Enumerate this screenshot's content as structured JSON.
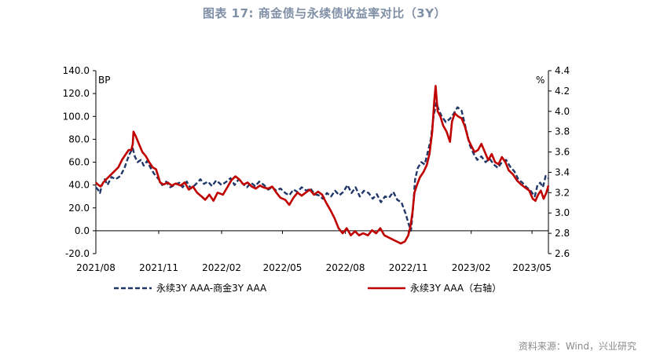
{
  "title": "图表 17: 商金债与永续债收益率对比（3Y）",
  "source": "资料来源：Wind，兴业研究",
  "colors": {
    "series1": "#1f3868",
    "series2": "#c00000",
    "title": "#7f8fa6"
  },
  "chart_data": {
    "type": "line",
    "left_axis": {
      "unit_label": "BP",
      "range": [
        -20,
        140
      ],
      "ticks": [
        "140.0",
        "120.0",
        "100.0",
        "80.0",
        "60.0",
        "40.0",
        "20.0",
        "0.0",
        "-20.0"
      ]
    },
    "right_axis": {
      "unit_label": "%",
      "range": [
        2.6,
        4.4
      ],
      "ticks": [
        "4.4",
        "4.2",
        "4.0",
        "3.8",
        "3.6",
        "3.4",
        "3.2",
        "3.0",
        "2.8",
        "2.6"
      ]
    },
    "x_ticks": [
      "2021/08",
      "2021/11",
      "2022/02",
      "2022/05",
      "2022/08",
      "2022/11",
      "2023/02",
      "2023/05"
    ],
    "x_range": [
      "2021-08-01",
      "2023-05-25"
    ],
    "grid": false,
    "legend_position": "bottom",
    "series": [
      {
        "name": "永续3Y AAA-商金3Y AAA",
        "axis": "left",
        "style": "dashed",
        "color": "#1f3868",
        "points": [
          [
            "2021-08-01",
            38
          ],
          [
            "2021-08-04",
            36
          ],
          [
            "2021-08-07",
            33
          ],
          [
            "2021-08-10",
            40
          ],
          [
            "2021-08-14",
            45
          ],
          [
            "2021-08-18",
            40
          ],
          [
            "2021-08-24",
            47
          ],
          [
            "2021-08-30",
            45
          ],
          [
            "2021-09-06",
            48
          ],
          [
            "2021-09-12",
            55
          ],
          [
            "2021-09-16",
            62
          ],
          [
            "2021-09-20",
            68
          ],
          [
            "2021-09-24",
            72
          ],
          [
            "2021-09-27",
            65
          ],
          [
            "2021-10-01",
            60
          ],
          [
            "2021-10-06",
            62
          ],
          [
            "2021-10-10",
            57
          ],
          [
            "2021-10-15",
            61
          ],
          [
            "2021-10-20",
            55
          ],
          [
            "2021-10-25",
            50
          ],
          [
            "2021-11-01",
            45
          ],
          [
            "2021-11-06",
            40
          ],
          [
            "2021-11-12",
            43
          ],
          [
            "2021-11-18",
            38
          ],
          [
            "2021-11-24",
            40
          ],
          [
            "2021-12-01",
            42
          ],
          [
            "2021-12-06",
            38
          ],
          [
            "2021-12-12",
            43
          ],
          [
            "2021-12-18",
            37
          ],
          [
            "2021-12-24",
            40
          ],
          [
            "2022-01-01",
            45
          ],
          [
            "2022-01-06",
            41
          ],
          [
            "2022-01-12",
            43
          ],
          [
            "2022-01-18",
            39
          ],
          [
            "2022-01-24",
            44
          ],
          [
            "2022-02-01",
            40
          ],
          [
            "2022-02-08",
            43
          ],
          [
            "2022-02-14",
            46
          ],
          [
            "2022-02-20",
            40
          ],
          [
            "2022-02-26",
            45
          ],
          [
            "2022-03-04",
            41
          ],
          [
            "2022-03-10",
            38
          ],
          [
            "2022-03-16",
            42
          ],
          [
            "2022-03-22",
            39
          ],
          [
            "2022-03-28",
            43
          ],
          [
            "2022-04-04",
            40
          ],
          [
            "2022-04-10",
            36
          ],
          [
            "2022-04-16",
            38
          ],
          [
            "2022-04-22",
            35
          ],
          [
            "2022-04-28",
            37
          ],
          [
            "2022-05-05",
            33
          ],
          [
            "2022-05-11",
            31
          ],
          [
            "2022-05-17",
            36
          ],
          [
            "2022-05-23",
            34
          ],
          [
            "2022-05-29",
            38
          ],
          [
            "2022-06-05",
            35
          ],
          [
            "2022-06-11",
            37
          ],
          [
            "2022-06-17",
            32
          ],
          [
            "2022-06-23",
            31
          ],
          [
            "2022-06-29",
            28
          ],
          [
            "2022-07-05",
            33
          ],
          [
            "2022-07-11",
            30
          ],
          [
            "2022-07-17",
            35
          ],
          [
            "2022-07-23",
            31
          ],
          [
            "2022-07-29",
            34
          ],
          [
            "2022-08-04",
            40
          ],
          [
            "2022-08-10",
            33
          ],
          [
            "2022-08-16",
            38
          ],
          [
            "2022-08-22",
            30
          ],
          [
            "2022-08-28",
            35
          ],
          [
            "2022-09-04",
            33
          ],
          [
            "2022-09-10",
            28
          ],
          [
            "2022-09-16",
            32
          ],
          [
            "2022-09-22",
            25
          ],
          [
            "2022-09-28",
            30
          ],
          [
            "2022-10-04",
            29
          ],
          [
            "2022-10-10",
            34
          ],
          [
            "2022-10-16",
            27
          ],
          [
            "2022-10-22",
            25
          ],
          [
            "2022-10-28",
            15
          ],
          [
            "2022-11-02",
            5
          ],
          [
            "2022-11-05",
            0
          ],
          [
            "2022-11-08",
            20
          ],
          [
            "2022-11-11",
            45
          ],
          [
            "2022-11-15",
            55
          ],
          [
            "2022-11-20",
            60
          ],
          [
            "2022-11-25",
            58
          ],
          [
            "2022-11-30",
            70
          ],
          [
            "2022-12-04",
            80
          ],
          [
            "2022-12-08",
            100
          ],
          [
            "2022-12-12",
            112
          ],
          [
            "2022-12-16",
            105
          ],
          [
            "2022-12-20",
            100
          ],
          [
            "2022-12-26",
            95
          ],
          [
            "2023-01-01",
            98
          ],
          [
            "2023-01-06",
            102
          ],
          [
            "2023-01-12",
            108
          ],
          [
            "2023-01-18",
            105
          ],
          [
            "2023-01-24",
            90
          ],
          [
            "2023-01-30",
            75
          ],
          [
            "2023-02-04",
            68
          ],
          [
            "2023-02-10",
            62
          ],
          [
            "2023-02-16",
            65
          ],
          [
            "2023-02-22",
            60
          ],
          [
            "2023-02-28",
            63
          ],
          [
            "2023-03-06",
            58
          ],
          [
            "2023-03-12",
            55
          ],
          [
            "2023-03-18",
            60
          ],
          [
            "2023-03-24",
            62
          ],
          [
            "2023-03-30",
            56
          ],
          [
            "2023-04-05",
            52
          ],
          [
            "2023-04-11",
            45
          ],
          [
            "2023-04-17",
            42
          ],
          [
            "2023-04-23",
            38
          ],
          [
            "2023-04-29",
            35
          ],
          [
            "2023-05-05",
            30
          ],
          [
            "2023-05-09",
            40
          ],
          [
            "2023-05-13",
            42
          ],
          [
            "2023-05-17",
            38
          ],
          [
            "2023-05-21",
            48
          ],
          [
            "2023-05-25",
            46
          ]
        ]
      },
      {
        "name": "永续3Y AAA（右轴）",
        "axis": "right",
        "style": "solid",
        "color": "#c00000",
        "points": [
          [
            "2021-08-01",
            3.3
          ],
          [
            "2021-08-04",
            3.28
          ],
          [
            "2021-08-08",
            3.26
          ],
          [
            "2021-08-12",
            3.3
          ],
          [
            "2021-08-16",
            3.33
          ],
          [
            "2021-08-22",
            3.37
          ],
          [
            "2021-08-28",
            3.41
          ],
          [
            "2021-09-03",
            3.45
          ],
          [
            "2021-09-08",
            3.52
          ],
          [
            "2021-09-13",
            3.57
          ],
          [
            "2021-09-18",
            3.62
          ],
          [
            "2021-09-22",
            3.62
          ],
          [
            "2021-09-24",
            3.68
          ],
          [
            "2021-09-25",
            3.8
          ],
          [
            "2021-09-28",
            3.76
          ],
          [
            "2021-10-03",
            3.68
          ],
          [
            "2021-10-08",
            3.6
          ],
          [
            "2021-10-13",
            3.56
          ],
          [
            "2021-10-18",
            3.5
          ],
          [
            "2021-10-23",
            3.45
          ],
          [
            "2021-10-28",
            3.43
          ],
          [
            "2021-11-03",
            3.3
          ],
          [
            "2021-11-08",
            3.28
          ],
          [
            "2021-11-14",
            3.3
          ],
          [
            "2021-11-20",
            3.27
          ],
          [
            "2021-11-26",
            3.29
          ],
          [
            "2021-12-03",
            3.27
          ],
          [
            "2021-12-09",
            3.3
          ],
          [
            "2021-12-15",
            3.23
          ],
          [
            "2021-12-21",
            3.26
          ],
          [
            "2021-12-27",
            3.2
          ],
          [
            "2022-01-03",
            3.16
          ],
          [
            "2022-01-08",
            3.13
          ],
          [
            "2022-01-14",
            3.18
          ],
          [
            "2022-01-20",
            3.12
          ],
          [
            "2022-01-26",
            3.2
          ],
          [
            "2022-02-03",
            3.18
          ],
          [
            "2022-02-09",
            3.25
          ],
          [
            "2022-02-15",
            3.32
          ],
          [
            "2022-02-21",
            3.36
          ],
          [
            "2022-02-27",
            3.33
          ],
          [
            "2022-03-05",
            3.28
          ],
          [
            "2022-03-11",
            3.3
          ],
          [
            "2022-03-17",
            3.26
          ],
          [
            "2022-03-23",
            3.24
          ],
          [
            "2022-03-29",
            3.27
          ],
          [
            "2022-04-04",
            3.25
          ],
          [
            "2022-04-10",
            3.24
          ],
          [
            "2022-04-16",
            3.26
          ],
          [
            "2022-04-22",
            3.2
          ],
          [
            "2022-04-28",
            3.15
          ],
          [
            "2022-05-05",
            3.13
          ],
          [
            "2022-05-11",
            3.08
          ],
          [
            "2022-05-17",
            3.15
          ],
          [
            "2022-05-23",
            3.2
          ],
          [
            "2022-05-29",
            3.17
          ],
          [
            "2022-06-04",
            3.2
          ],
          [
            "2022-06-10",
            3.23
          ],
          [
            "2022-06-16",
            3.18
          ],
          [
            "2022-06-22",
            3.21
          ],
          [
            "2022-06-28",
            3.18
          ],
          [
            "2022-07-04",
            3.1
          ],
          [
            "2022-07-10",
            3.03
          ],
          [
            "2022-07-16",
            2.95
          ],
          [
            "2022-07-22",
            2.85
          ],
          [
            "2022-07-28",
            2.8
          ],
          [
            "2022-08-03",
            2.85
          ],
          [
            "2022-08-09",
            2.78
          ],
          [
            "2022-08-15",
            2.82
          ],
          [
            "2022-08-21",
            2.78
          ],
          [
            "2022-08-27",
            2.8
          ],
          [
            "2022-09-03",
            2.78
          ],
          [
            "2022-09-09",
            2.83
          ],
          [
            "2022-09-15",
            2.8
          ],
          [
            "2022-09-21",
            2.85
          ],
          [
            "2022-09-27",
            2.78
          ],
          [
            "2022-10-03",
            2.76
          ],
          [
            "2022-10-09",
            2.74
          ],
          [
            "2022-10-15",
            2.72
          ],
          [
            "2022-10-21",
            2.7
          ],
          [
            "2022-10-27",
            2.72
          ],
          [
            "2022-11-01",
            2.78
          ],
          [
            "2022-11-04",
            2.86
          ],
          [
            "2022-11-07",
            3.0
          ],
          [
            "2022-11-10",
            3.2
          ],
          [
            "2022-11-14",
            3.28
          ],
          [
            "2022-11-18",
            3.35
          ],
          [
            "2022-11-23",
            3.4
          ],
          [
            "2022-11-28",
            3.47
          ],
          [
            "2022-12-02",
            3.58
          ],
          [
            "2022-12-06",
            3.8
          ],
          [
            "2022-12-09",
            4.1
          ],
          [
            "2022-12-11",
            4.25
          ],
          [
            "2022-12-14",
            4.0
          ],
          [
            "2022-12-18",
            3.95
          ],
          [
            "2022-12-22",
            3.86
          ],
          [
            "2022-12-27",
            3.8
          ],
          [
            "2023-01-01",
            3.7
          ],
          [
            "2023-01-04",
            3.9
          ],
          [
            "2023-01-08",
            3.98
          ],
          [
            "2023-01-13",
            3.95
          ],
          [
            "2023-01-18",
            3.93
          ],
          [
            "2023-01-23",
            3.85
          ],
          [
            "2023-01-28",
            3.72
          ],
          [
            "2023-02-02",
            3.65
          ],
          [
            "2023-02-06",
            3.6
          ],
          [
            "2023-02-11",
            3.62
          ],
          [
            "2023-02-16",
            3.68
          ],
          [
            "2023-02-21",
            3.6
          ],
          [
            "2023-02-26",
            3.52
          ],
          [
            "2023-03-03",
            3.58
          ],
          [
            "2023-03-08",
            3.5
          ],
          [
            "2023-03-13",
            3.48
          ],
          [
            "2023-03-18",
            3.55
          ],
          [
            "2023-03-23",
            3.5
          ],
          [
            "2023-03-28",
            3.42
          ],
          [
            "2023-04-03",
            3.38
          ],
          [
            "2023-04-09",
            3.32
          ],
          [
            "2023-04-15",
            3.28
          ],
          [
            "2023-04-21",
            3.25
          ],
          [
            "2023-04-27",
            3.22
          ],
          [
            "2023-05-02",
            3.14
          ],
          [
            "2023-05-06",
            3.12
          ],
          [
            "2023-05-10",
            3.18
          ],
          [
            "2023-05-14",
            3.22
          ],
          [
            "2023-05-18",
            3.14
          ],
          [
            "2023-05-22",
            3.2
          ],
          [
            "2023-05-25",
            3.27
          ]
        ]
      }
    ]
  }
}
